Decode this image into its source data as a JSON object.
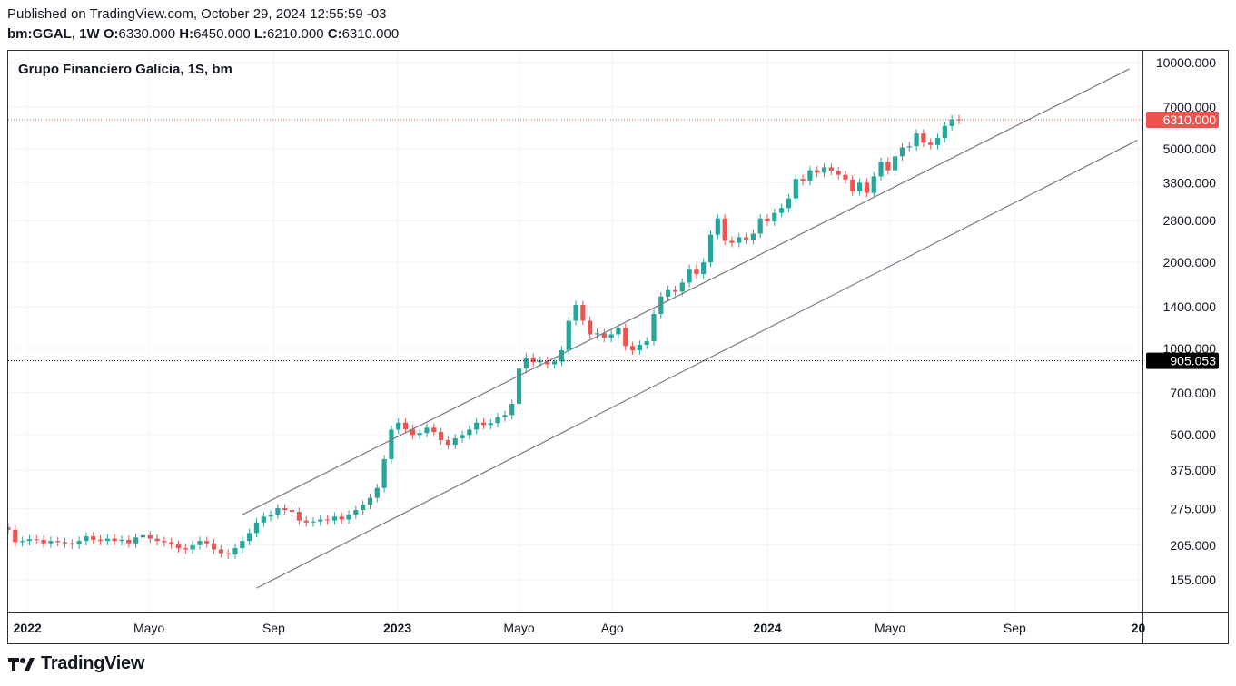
{
  "header": {
    "published": "Published on TradingView.com, October 29, 2024 12:55:59 -03",
    "symbol": "bm:GGAL, 1W",
    "o_label": "O:",
    "o_value": "6330.000",
    "h_label": "H:",
    "h_value": "6450.000",
    "l_label": "L:",
    "l_value": "6210.000",
    "c_label": "C:",
    "c_value": "6310.000"
  },
  "footer": {
    "brand": "TradingView",
    "logo_icon": "tradingview-logo-icon"
  },
  "colors": {
    "up": "#26a69a",
    "down": "#ef5350",
    "last_price_bg": "#ef5350",
    "marker_bg": "#000000",
    "channel": "#787b86",
    "grid": "#f0f3fa"
  },
  "chart_data": {
    "type": "candlestick",
    "title": "Grupo Financiero Galicia, 1S, bm",
    "y_scale": "log",
    "ylim": [
      120,
      11000
    ],
    "y_ticks": [
      "155.000",
      "205.000",
      "275.000",
      "375.000",
      "500.000",
      "700.000",
      "1000.000",
      "1400.000",
      "2000.000",
      "2800.000",
      "3800.000",
      "5000.000",
      "7000.000",
      "10000.000"
    ],
    "x_range": [
      "2021-12-13",
      "2025-01-05"
    ],
    "x_ticks": [
      {
        "date": "2022-01-01",
        "label": "2022",
        "bold": true
      },
      {
        "date": "2022-05-01",
        "label": "Mayo",
        "bold": false
      },
      {
        "date": "2022-09-01",
        "label": "Sep",
        "bold": false
      },
      {
        "date": "2023-01-01",
        "label": "2023",
        "bold": true
      },
      {
        "date": "2023-05-01",
        "label": "Mayo",
        "bold": false
      },
      {
        "date": "2023-08-01",
        "label": "Ago",
        "bold": false
      },
      {
        "date": "2024-01-01",
        "label": "2024",
        "bold": true
      },
      {
        "date": "2024-05-01",
        "label": "Mayo",
        "bold": false
      },
      {
        "date": "2024-09-01",
        "label": "Sep",
        "bold": false
      },
      {
        "date": "2025-01-01",
        "label": "20",
        "bold": true
      }
    ],
    "price_labels": [
      {
        "value": 6310,
        "label": "6310.000",
        "style": "last",
        "line": "dotted-red"
      },
      {
        "value": 905.053,
        "label": "905.053",
        "style": "marker",
        "line": "dotted-black"
      }
    ],
    "channel": [
      {
        "from": {
          "date": "2022-08-01",
          "price": 262
        },
        "to": {
          "date": "2024-12-23",
          "price": 9500
        }
      },
      {
        "from": {
          "date": "2022-08-15",
          "price": 145
        },
        "to": {
          "date": "2024-12-31",
          "price": 5350
        }
      }
    ],
    "weekly_closes": [
      232,
      210,
      212,
      215,
      214,
      208,
      212,
      210,
      208,
      206,
      212,
      220,
      214,
      212,
      216,
      212,
      214,
      208,
      218,
      222,
      216,
      212,
      210,
      206,
      200,
      198,
      205,
      212,
      208,
      198,
      192,
      190,
      200,
      212,
      226,
      246,
      258,
      262,
      276,
      272,
      268,
      250,
      246,
      248,
      252,
      250,
      258,
      252,
      262,
      272,
      284,
      300,
      325,
      410,
      520,
      550,
      522,
      498,
      506,
      528,
      510,
      478,
      460,
      485,
      498,
      520,
      550,
      540,
      548,
      575,
      585,
      640,
      850,
      930,
      895,
      905,
      880,
      900,
      985,
      1250,
      1420,
      1250,
      1120,
      1130,
      1090,
      1120,
      1180,
      1020,
      985,
      1030,
      1060,
      1320,
      1520,
      1600,
      1580,
      1700,
      1900,
      1820,
      2000,
      2500,
      2850,
      2380,
      2340,
      2450,
      2400,
      2520,
      2850,
      2780,
      2980,
      3100,
      3350,
      3920,
      3850,
      4200,
      4120,
      4300,
      4180,
      4050,
      3900,
      3550,
      3800,
      3500,
      4000,
      4500,
      4200,
      4700,
      5050,
      5100,
      5650,
      5250,
      5150,
      5450,
      6000,
      6330,
      6310
    ]
  }
}
